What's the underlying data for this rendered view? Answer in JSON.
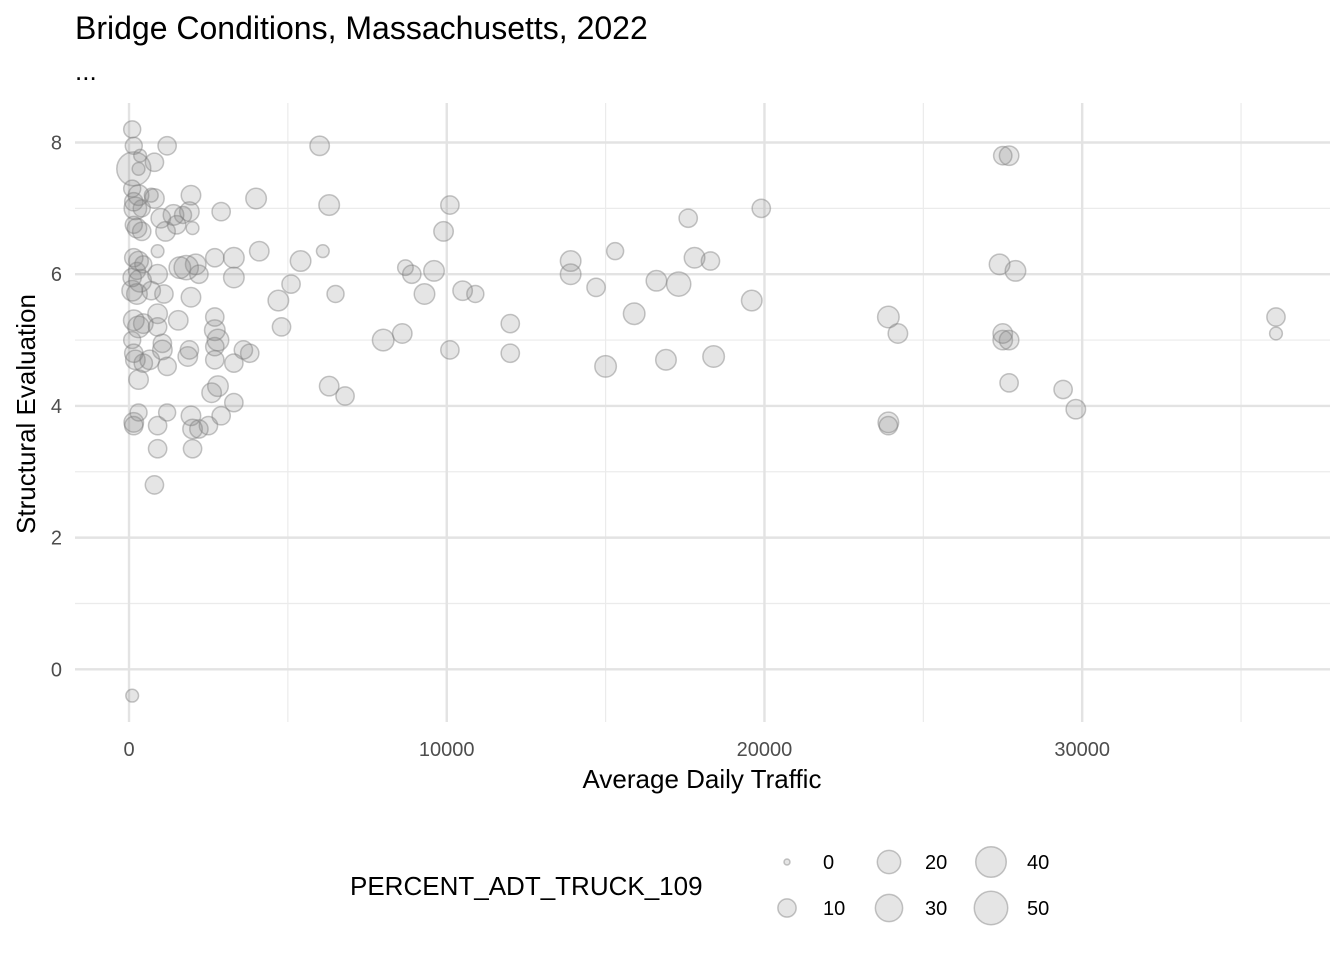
{
  "chart_data": {
    "type": "scatter",
    "title": "Bridge Conditions, Massachusetts, 2022",
    "subtitle": "...",
    "xlabel": "Average Daily Traffic",
    "ylabel": "Structural Evaluation",
    "xlim": [
      -1700,
      37800
    ],
    "ylim": [
      -0.8,
      8.6
    ],
    "x_ticks": [
      0,
      10000,
      20000,
      30000
    ],
    "x_tick_labels": [
      "0",
      "10000",
      "20000",
      "30000"
    ],
    "y_ticks": [
      0,
      2,
      4,
      6,
      8
    ],
    "y_tick_labels": [
      "0",
      "2",
      "4",
      "6",
      "8"
    ],
    "grid": true,
    "point_color": "#7f7f7f",
    "point_alpha": 0.2,
    "legend": {
      "title": "PERCENT_ADT_TRUCK_109",
      "position": "bottom",
      "entries": [
        {
          "value": 0,
          "label": "0"
        },
        {
          "value": 10,
          "label": "10"
        },
        {
          "value": 20,
          "label": "20"
        },
        {
          "value": 30,
          "label": "30"
        },
        {
          "value": 40,
          "label": "40"
        },
        {
          "value": 50,
          "label": "50"
        }
      ]
    },
    "points": [
      {
        "x": 100,
        "y": 8.2,
        "size": 8
      },
      {
        "x": 150,
        "y": 7.95,
        "size": 8
      },
      {
        "x": 350,
        "y": 7.8,
        "size": 3
      },
      {
        "x": 150,
        "y": 7.6,
        "size": 52
      },
      {
        "x": 300,
        "y": 7.6,
        "size": 3
      },
      {
        "x": 1200,
        "y": 7.95,
        "size": 10
      },
      {
        "x": 800,
        "y": 7.7,
        "size": 10
      },
      {
        "x": 100,
        "y": 7.3,
        "size": 8
      },
      {
        "x": 300,
        "y": 7.2,
        "size": 14
      },
      {
        "x": 700,
        "y": 7.2,
        "size": 4
      },
      {
        "x": 800,
        "y": 7.15,
        "size": 12
      },
      {
        "x": 150,
        "y": 7.1,
        "size": 10
      },
      {
        "x": 200,
        "y": 7.0,
        "size": 18
      },
      {
        "x": 400,
        "y": 7.0,
        "size": 8
      },
      {
        "x": 1000,
        "y": 6.85,
        "size": 12
      },
      {
        "x": 1400,
        "y": 6.9,
        "size": 14
      },
      {
        "x": 1700,
        "y": 6.9,
        "size": 8
      },
      {
        "x": 1900,
        "y": 6.95,
        "size": 12
      },
      {
        "x": 1950,
        "y": 7.2,
        "size": 12
      },
      {
        "x": 2000,
        "y": 6.7,
        "size": 3
      },
      {
        "x": 1150,
        "y": 6.65,
        "size": 12
      },
      {
        "x": 1500,
        "y": 6.75,
        "size": 10
      },
      {
        "x": 150,
        "y": 6.75,
        "size": 8
      },
      {
        "x": 250,
        "y": 6.7,
        "size": 12
      },
      {
        "x": 400,
        "y": 6.65,
        "size": 10
      },
      {
        "x": 900,
        "y": 6.35,
        "size": 3
      },
      {
        "x": 150,
        "y": 6.25,
        "size": 10
      },
      {
        "x": 300,
        "y": 6.2,
        "size": 12
      },
      {
        "x": 450,
        "y": 6.15,
        "size": 8
      },
      {
        "x": 250,
        "y": 6.05,
        "size": 8
      },
      {
        "x": 100,
        "y": 5.95,
        "size": 10
      },
      {
        "x": 350,
        "y": 5.9,
        "size": 18
      },
      {
        "x": 900,
        "y": 6.0,
        "size": 12
      },
      {
        "x": 1600,
        "y": 6.1,
        "size": 16
      },
      {
        "x": 1800,
        "y": 6.1,
        "size": 22
      },
      {
        "x": 2100,
        "y": 6.15,
        "size": 14
      },
      {
        "x": 2200,
        "y": 6.0,
        "size": 10
      },
      {
        "x": 2700,
        "y": 6.25,
        "size": 10
      },
      {
        "x": 3300,
        "y": 6.25,
        "size": 14
      },
      {
        "x": 3300,
        "y": 5.95,
        "size": 14
      },
      {
        "x": 4100,
        "y": 6.35,
        "size": 12
      },
      {
        "x": 100,
        "y": 5.75,
        "size": 14
      },
      {
        "x": 250,
        "y": 5.7,
        "size": 14
      },
      {
        "x": 700,
        "y": 5.75,
        "size": 10
      },
      {
        "x": 1100,
        "y": 5.7,
        "size": 10
      },
      {
        "x": 1950,
        "y": 5.65,
        "size": 12
      },
      {
        "x": 4700,
        "y": 5.6,
        "size": 14
      },
      {
        "x": 5100,
        "y": 5.85,
        "size": 10
      },
      {
        "x": 5400,
        "y": 6.2,
        "size": 14
      },
      {
        "x": 6000,
        "y": 7.95,
        "size": 12
      },
      {
        "x": 6300,
        "y": 7.05,
        "size": 14
      },
      {
        "x": 6100,
        "y": 6.35,
        "size": 3
      },
      {
        "x": 6500,
        "y": 5.7,
        "size": 8
      },
      {
        "x": 4000,
        "y": 7.15,
        "size": 14
      },
      {
        "x": 2900,
        "y": 6.95,
        "size": 10
      },
      {
        "x": 150,
        "y": 5.3,
        "size": 14
      },
      {
        "x": 300,
        "y": 5.2,
        "size": 16
      },
      {
        "x": 450,
        "y": 5.25,
        "size": 12
      },
      {
        "x": 900,
        "y": 5.4,
        "size": 12
      },
      {
        "x": 900,
        "y": 5.2,
        "size": 10
      },
      {
        "x": 1550,
        "y": 5.3,
        "size": 12
      },
      {
        "x": 2700,
        "y": 5.35,
        "size": 10
      },
      {
        "x": 2700,
        "y": 5.15,
        "size": 14
      },
      {
        "x": 2800,
        "y": 5.0,
        "size": 16
      },
      {
        "x": 2700,
        "y": 4.9,
        "size": 10
      },
      {
        "x": 4800,
        "y": 5.2,
        "size": 10
      },
      {
        "x": 100,
        "y": 5.0,
        "size": 8
      },
      {
        "x": 150,
        "y": 4.8,
        "size": 10
      },
      {
        "x": 200,
        "y": 4.7,
        "size": 12
      },
      {
        "x": 450,
        "y": 4.65,
        "size": 10
      },
      {
        "x": 650,
        "y": 4.7,
        "size": 12
      },
      {
        "x": 1050,
        "y": 4.85,
        "size": 12
      },
      {
        "x": 1050,
        "y": 4.95,
        "size": 10
      },
      {
        "x": 1200,
        "y": 4.6,
        "size": 10
      },
      {
        "x": 1850,
        "y": 4.75,
        "size": 12
      },
      {
        "x": 1900,
        "y": 4.85,
        "size": 10
      },
      {
        "x": 2700,
        "y": 4.7,
        "size": 10
      },
      {
        "x": 3600,
        "y": 4.85,
        "size": 10
      },
      {
        "x": 3800,
        "y": 4.8,
        "size": 10
      },
      {
        "x": 3300,
        "y": 4.65,
        "size": 10
      },
      {
        "x": 300,
        "y": 4.4,
        "size": 12
      },
      {
        "x": 2600,
        "y": 4.2,
        "size": 12
      },
      {
        "x": 2800,
        "y": 4.3,
        "size": 14
      },
      {
        "x": 3300,
        "y": 4.05,
        "size": 10
      },
      {
        "x": 2900,
        "y": 3.85,
        "size": 10
      },
      {
        "x": 1950,
        "y": 3.85,
        "size": 12
      },
      {
        "x": 1200,
        "y": 3.9,
        "size": 8
      },
      {
        "x": 300,
        "y": 3.9,
        "size": 8
      },
      {
        "x": 150,
        "y": 3.75,
        "size": 12
      },
      {
        "x": 150,
        "y": 3.7,
        "size": 10
      },
      {
        "x": 900,
        "y": 3.7,
        "size": 10
      },
      {
        "x": 2000,
        "y": 3.65,
        "size": 12
      },
      {
        "x": 2200,
        "y": 3.65,
        "size": 10
      },
      {
        "x": 2500,
        "y": 3.7,
        "size": 10
      },
      {
        "x": 900,
        "y": 3.35,
        "size": 10
      },
      {
        "x": 2000,
        "y": 3.35,
        "size": 10
      },
      {
        "x": 800,
        "y": 2.8,
        "size": 10
      },
      {
        "x": 100,
        "y": -0.4,
        "size": 3
      },
      {
        "x": 6300,
        "y": 4.3,
        "size": 12
      },
      {
        "x": 6800,
        "y": 4.15,
        "size": 10
      },
      {
        "x": 8000,
        "y": 5.0,
        "size": 16
      },
      {
        "x": 8600,
        "y": 5.1,
        "size": 12
      },
      {
        "x": 8700,
        "y": 6.1,
        "size": 6
      },
      {
        "x": 8900,
        "y": 6.0,
        "size": 10
      },
      {
        "x": 9600,
        "y": 6.05,
        "size": 14
      },
      {
        "x": 9300,
        "y": 5.7,
        "size": 14
      },
      {
        "x": 10100,
        "y": 7.05,
        "size": 10
      },
      {
        "x": 9900,
        "y": 6.65,
        "size": 12
      },
      {
        "x": 10500,
        "y": 5.75,
        "size": 12
      },
      {
        "x": 10100,
        "y": 4.85,
        "size": 10
      },
      {
        "x": 10900,
        "y": 5.7,
        "size": 8
      },
      {
        "x": 12000,
        "y": 5.25,
        "size": 10
      },
      {
        "x": 12000,
        "y": 4.8,
        "size": 10
      },
      {
        "x": 13900,
        "y": 6.2,
        "size": 14
      },
      {
        "x": 13900,
        "y": 6.0,
        "size": 14
      },
      {
        "x": 14700,
        "y": 5.8,
        "size": 10
      },
      {
        "x": 15300,
        "y": 6.35,
        "size": 8
      },
      {
        "x": 15900,
        "y": 5.4,
        "size": 16
      },
      {
        "x": 15000,
        "y": 4.6,
        "size": 16
      },
      {
        "x": 16600,
        "y": 5.9,
        "size": 14
      },
      {
        "x": 17300,
        "y": 5.85,
        "size": 22
      },
      {
        "x": 17600,
        "y": 6.85,
        "size": 10
      },
      {
        "x": 17800,
        "y": 6.25,
        "size": 14
      },
      {
        "x": 18300,
        "y": 6.2,
        "size": 10
      },
      {
        "x": 16900,
        "y": 4.7,
        "size": 14
      },
      {
        "x": 18400,
        "y": 4.75,
        "size": 16
      },
      {
        "x": 19600,
        "y": 5.6,
        "size": 14
      },
      {
        "x": 19900,
        "y": 7.0,
        "size": 10
      },
      {
        "x": 23900,
        "y": 5.35,
        "size": 16
      },
      {
        "x": 24200,
        "y": 5.1,
        "size": 12
      },
      {
        "x": 23900,
        "y": 3.75,
        "size": 14
      },
      {
        "x": 23900,
        "y": 3.7,
        "size": 10
      },
      {
        "x": 27400,
        "y": 6.15,
        "size": 14
      },
      {
        "x": 27900,
        "y": 6.05,
        "size": 14
      },
      {
        "x": 27500,
        "y": 5.1,
        "size": 12
      },
      {
        "x": 27500,
        "y": 5.0,
        "size": 12
      },
      {
        "x": 27700,
        "y": 5.0,
        "size": 12
      },
      {
        "x": 27700,
        "y": 4.35,
        "size": 10
      },
      {
        "x": 27500,
        "y": 7.8,
        "size": 10
      },
      {
        "x": 27700,
        "y": 7.8,
        "size": 12
      },
      {
        "x": 29400,
        "y": 4.25,
        "size": 10
      },
      {
        "x": 29800,
        "y": 3.95,
        "size": 12
      },
      {
        "x": 36100,
        "y": 5.35,
        "size": 10
      },
      {
        "x": 36100,
        "y": 5.1,
        "size": 3
      }
    ]
  }
}
